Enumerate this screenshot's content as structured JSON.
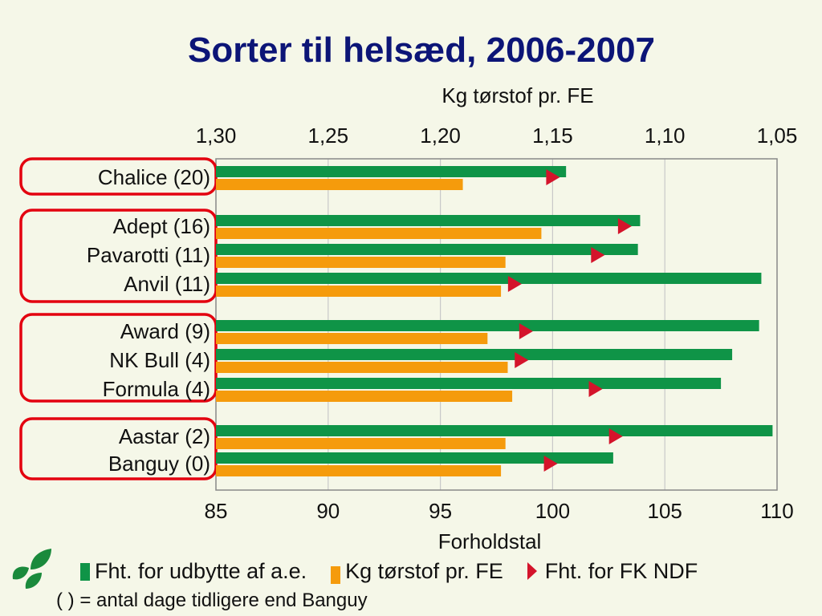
{
  "title": "Sorter til helsæd, 2006-2007",
  "footnote": "( ) = antal dage tidligere end Banguy",
  "colors": {
    "green": "#0f9447",
    "orange": "#f59b0c",
    "red": "#d4142b",
    "frame": "#e3000f",
    "title": "#0c1577"
  },
  "legend": [
    {
      "label": "Fht. for udbytte af a.e.",
      "icon": "green-square"
    },
    {
      "label": "Kg tørstof pr. FE",
      "icon": "orange-square"
    },
    {
      "label": "Fht. for FK NDF",
      "icon": "red-triangle"
    }
  ],
  "chart_data": {
    "type": "bar",
    "orientation": "horizontal",
    "categories": [
      "Chalice (20)",
      "Adept (16)",
      "Pavarotti (11)",
      "Anvil (11)",
      "Award (9)",
      "NK Bull (4)",
      "Formula (4)",
      "Aastar (2)",
      "Banguy (0)"
    ],
    "groups": [
      [
        "Chalice (20)"
      ],
      [
        "Adept (16)",
        "Pavarotti (11)",
        "Anvil (11)"
      ],
      [
        "Award (9)",
        "NK Bull (4)",
        "Formula (4)"
      ],
      [
        "Aastar (2)",
        "Banguy (0)"
      ]
    ],
    "series": [
      {
        "name": "Fht. for udbytte af a.e.",
        "axis": "bottom",
        "values": [
          100.6,
          103.9,
          103.8,
          109.3,
          109.2,
          108.0,
          107.5,
          109.8,
          102.7
        ]
      },
      {
        "name": "Kg tørstof pr. FE",
        "axis": "top",
        "values": [
          1.19,
          1.155,
          1.171,
          1.173,
          1.179,
          1.17,
          1.168,
          1.171,
          1.173
        ]
      },
      {
        "name": "Fht. for FK NDF",
        "axis": "bottom",
        "marker": "triangle",
        "values": [
          100.0,
          103.2,
          102.0,
          98.3,
          98.8,
          98.6,
          101.9,
          102.8,
          99.9
        ]
      }
    ],
    "x_bottom": {
      "label": "Forholdstal",
      "range": [
        85,
        110
      ],
      "ticks": [
        "85",
        "90",
        "95",
        "100",
        "105",
        "110"
      ]
    },
    "x_top": {
      "label": "Kg tørstof pr. FE",
      "range": [
        1.3,
        1.05
      ],
      "ticks": [
        "1,30",
        "1,25",
        "1,20",
        "1,15",
        "1,10",
        "1,05"
      ]
    },
    "grid": "vertical"
  }
}
